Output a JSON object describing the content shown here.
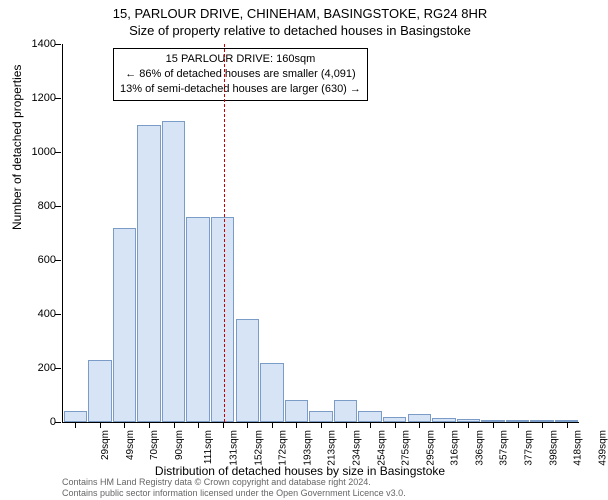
{
  "title1": "15, PARLOUR DRIVE, CHINEHAM, BASINGSTOKE, RG24 8HR",
  "title2": "Size of property relative to detached houses in Basingstoke",
  "ylabel": "Number of detached properties",
  "xlabel": "Distribution of detached houses by size in Basingstoke",
  "chart": {
    "type": "histogram",
    "background_color": "#ffffff",
    "bar_fill": "#d6e4f5",
    "bar_border": "#7a9cc6",
    "vline_color": "#cc0000",
    "vline_x_sqm": 160,
    "ylim": [
      0,
      1400
    ],
    "ytick_step": 200,
    "yticks": [
      0,
      200,
      400,
      600,
      800,
      1000,
      1200,
      1400
    ],
    "xlim_sqm": [
      29,
      449
    ],
    "xtick_labels": [
      "29sqm",
      "49sqm",
      "70sqm",
      "90sqm",
      "111sqm",
      "131sqm",
      "152sqm",
      "172sqm",
      "193sqm",
      "213sqm",
      "234sqm",
      "254sqm",
      "275sqm",
      "295sqm",
      "316sqm",
      "336sqm",
      "357sqm",
      "377sqm",
      "398sqm",
      "418sqm",
      "439sqm"
    ],
    "bar_values": [
      40,
      230,
      720,
      1100,
      1115,
      760,
      760,
      380,
      220,
      80,
      40,
      80,
      40,
      20,
      30,
      15,
      10,
      5,
      5,
      5,
      5
    ],
    "bar_width_rel": 0.95,
    "axis_fontsize": 11,
    "label_fontsize": 12,
    "title_fontsize": 13
  },
  "annotation": {
    "line1": "15 PARLOUR DRIVE: 160sqm",
    "line2": "← 86% of detached houses are smaller (4,091)",
    "line3": "13% of semi-detached houses are larger (630) →",
    "border_color": "#000000",
    "bg_color": "#ffffff",
    "fontsize": 11
  },
  "credits": {
    "line1": "Contains HM Land Registry data © Crown copyright and database right 2024.",
    "line2": "Contains public sector information licensed under the Open Government Licence v3.0.",
    "color": "#666666",
    "fontsize": 9
  }
}
